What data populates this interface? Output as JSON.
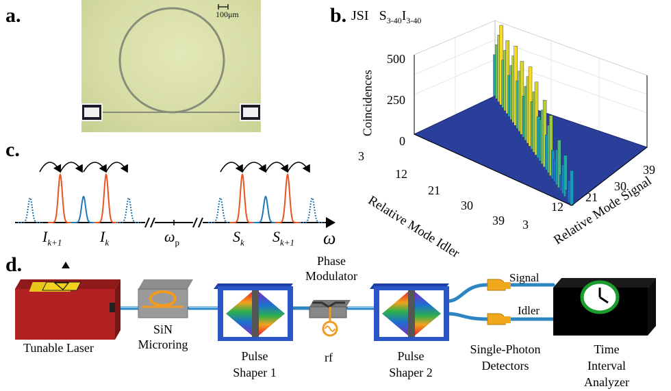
{
  "panels": {
    "a": "a.",
    "b": "b.",
    "c": "c.",
    "d": "d."
  },
  "panel_a": {
    "scalebar": "100μm"
  },
  "panel_b": {
    "title_jsi": "JSI",
    "title_s": "S",
    "title_s_sub": "3-40",
    "title_i": "I",
    "title_i_sub": "3-40",
    "zlabel": "Coincidences",
    "ylabel": "Relative Mode Idler",
    "xlabel": "Relative Mode Signal",
    "zticks": [
      "0",
      "250",
      "500"
    ],
    "idler_ticks": [
      "3",
      "12",
      "21",
      "30",
      "39"
    ],
    "signal_ticks": [
      "3",
      "12",
      "21",
      "30",
      "39"
    ]
  },
  "panel_c": {
    "labels": [
      {
        "main": "I",
        "sub": "k+1"
      },
      {
        "main": "I",
        "sub": "k"
      },
      {
        "main": "ω",
        "sub": "p"
      },
      {
        "main": "S",
        "sub": "k"
      },
      {
        "main": "S",
        "sub": "k+1"
      }
    ],
    "axis": "ω"
  },
  "panel_d": {
    "components": [
      {
        "name": "laser",
        "label": "Tunable Laser"
      },
      {
        "name": "microring",
        "label_lines": [
          "SiN",
          "Microring"
        ]
      },
      {
        "name": "pulse-shaper-1",
        "label_lines": [
          "Pulse",
          "Shaper 1"
        ]
      },
      {
        "name": "phase-modulator",
        "label_lines": [
          "Phase",
          "Modulator"
        ],
        "rf": "rf"
      },
      {
        "name": "pulse-shaper-2",
        "label_lines": [
          "Pulse",
          "Shaper 2"
        ]
      },
      {
        "name": "detectors",
        "label_lines": [
          "Single-Photon",
          "Detectors"
        ]
      },
      {
        "name": "tia",
        "label_lines": [
          "Time",
          "Interval",
          "Analyzer"
        ]
      }
    ],
    "signal_label": "Signal",
    "idler_label": "Idler"
  },
  "colors": {
    "orange": "#e8541c",
    "blue": "#1f77b4",
    "fiber": "#3a9bd5",
    "laser_red": "#b52323",
    "shaper_blue": "#2a56c6",
    "photo_green": "#d9dfa8"
  }
}
